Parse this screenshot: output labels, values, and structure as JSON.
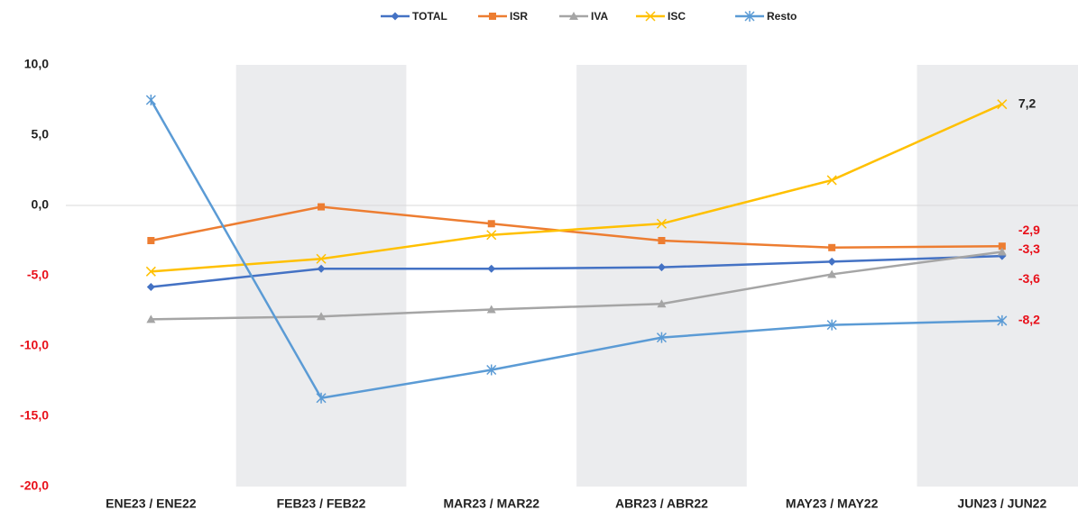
{
  "chart_data": {
    "type": "line",
    "categories": [
      "ENE23 / ENE22",
      "FEB23 / FEB22",
      "MAR23 / MAR22",
      "ABR23 / ABR22",
      "MAY23 / MAY22",
      "JUN23 / JUN22"
    ],
    "series": [
      {
        "name": "TOTAL",
        "color": "#4472c4",
        "marker": "diamond",
        "values": [
          -5.8,
          -4.5,
          -4.5,
          -4.4,
          -4.0,
          -3.6
        ],
        "value_labels": [
          null,
          null,
          null,
          null,
          null,
          "-3,6"
        ]
      },
      {
        "name": "ISR",
        "color": "#ed7d31",
        "marker": "square",
        "values": [
          -2.5,
          -0.1,
          -1.3,
          -2.5,
          -3.0,
          -2.9
        ],
        "value_labels": [
          null,
          null,
          null,
          null,
          null,
          "-2,9"
        ]
      },
      {
        "name": "IVA",
        "color": "#a5a5a5",
        "marker": "triangle",
        "values": [
          -8.1,
          -7.9,
          -7.4,
          -7.0,
          -4.9,
          -3.3
        ],
        "value_labels": [
          null,
          null,
          null,
          null,
          null,
          "-3,3"
        ]
      },
      {
        "name": "ISC",
        "color": "#ffc000",
        "marker": "x",
        "values": [
          -4.7,
          -3.8,
          -2.1,
          -1.3,
          1.8,
          7.2
        ],
        "value_labels": [
          null,
          null,
          null,
          null,
          null,
          "7,2"
        ]
      },
      {
        "name": "Resto",
        "color": "#5b9bd5",
        "marker": "star",
        "values": [
          7.5,
          -13.7,
          -11.7,
          -9.4,
          -8.5,
          -8.2
        ],
        "value_labels": [
          null,
          null,
          null,
          null,
          null,
          "-8,2"
        ]
      }
    ],
    "ylim": [
      -20,
      10
    ],
    "yticks": [
      {
        "value": -20,
        "label": "-20,0"
      },
      {
        "value": -15,
        "label": "-15,0"
      },
      {
        "value": -10,
        "label": "-10,0"
      },
      {
        "value": -5,
        "label": "-5,0"
      },
      {
        "value": 0,
        "label": "0,0"
      },
      {
        "value": 5,
        "label": "5,0"
      },
      {
        "value": 10,
        "label": "10,0"
      }
    ],
    "negative_label_color": "#e8101a",
    "zero_line": true,
    "alternate_band_shading": true,
    "legend": "top"
  }
}
